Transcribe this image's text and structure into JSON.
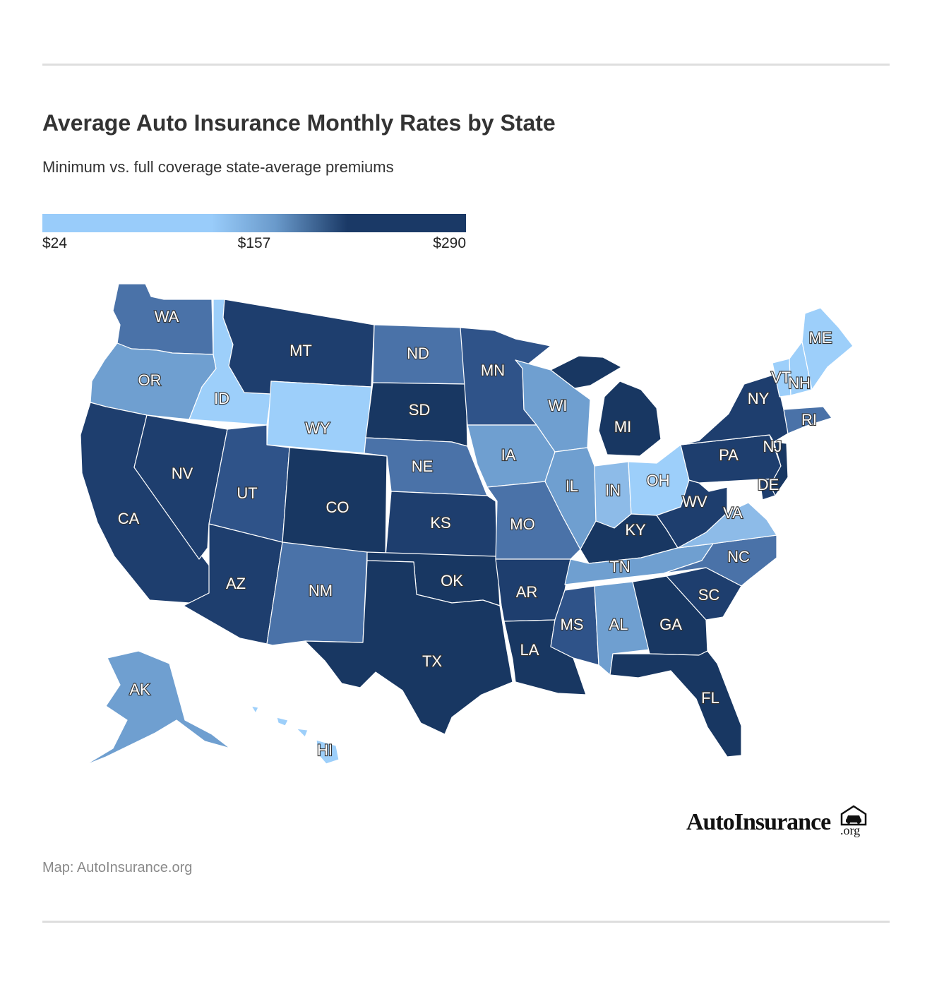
{
  "title": "Average Auto Insurance Monthly Rates by State",
  "subtitle": "Minimum vs. full coverage state-average premiums",
  "legend": {
    "min_label": "$24",
    "mid_label": "$157",
    "max_label": "$290",
    "min_value": 24,
    "mid_value": 157,
    "max_value": 290,
    "color_low": "#99ccfa",
    "color_mid": "#6a9acb",
    "color_high": "#1a3966"
  },
  "colors": {
    "lightest": "#9dcffa",
    "light": "#8dbbe8",
    "medium_light": "#6f9fd0",
    "medium": "#4a72a8",
    "medium_dark": "#2f5389",
    "dark": "#1e3e6e",
    "darkest": "#183762"
  },
  "states": [
    {
      "abbr": "WA",
      "shade": "medium"
    },
    {
      "abbr": "OR",
      "shade": "medium_light"
    },
    {
      "abbr": "CA",
      "shade": "dark"
    },
    {
      "abbr": "ID",
      "shade": "lightest"
    },
    {
      "abbr": "NV",
      "shade": "dark"
    },
    {
      "abbr": "MT",
      "shade": "dark"
    },
    {
      "abbr": "WY",
      "shade": "lightest"
    },
    {
      "abbr": "UT",
      "shade": "medium_dark"
    },
    {
      "abbr": "AZ",
      "shade": "dark"
    },
    {
      "abbr": "CO",
      "shade": "darkest"
    },
    {
      "abbr": "NM",
      "shade": "medium"
    },
    {
      "abbr": "ND",
      "shade": "medium"
    },
    {
      "abbr": "SD",
      "shade": "darkest"
    },
    {
      "abbr": "NE",
      "shade": "medium"
    },
    {
      "abbr": "KS",
      "shade": "dark"
    },
    {
      "abbr": "OK",
      "shade": "darkest"
    },
    {
      "abbr": "TX",
      "shade": "darkest"
    },
    {
      "abbr": "MN",
      "shade": "medium_dark"
    },
    {
      "abbr": "IA",
      "shade": "medium_light"
    },
    {
      "abbr": "MO",
      "shade": "medium"
    },
    {
      "abbr": "AR",
      "shade": "dark"
    },
    {
      "abbr": "LA",
      "shade": "darkest"
    },
    {
      "abbr": "WI",
      "shade": "medium_light"
    },
    {
      "abbr": "IL",
      "shade": "medium_light"
    },
    {
      "abbr": "MI",
      "shade": "darkest"
    },
    {
      "abbr": "IN",
      "shade": "light"
    },
    {
      "abbr": "OH",
      "shade": "lightest"
    },
    {
      "abbr": "KY",
      "shade": "darkest"
    },
    {
      "abbr": "TN",
      "shade": "medium_light"
    },
    {
      "abbr": "MS",
      "shade": "medium_dark"
    },
    {
      "abbr": "AL",
      "shade": "medium_light"
    },
    {
      "abbr": "GA",
      "shade": "darkest"
    },
    {
      "abbr": "FL",
      "shade": "darkest"
    },
    {
      "abbr": "SC",
      "shade": "dark"
    },
    {
      "abbr": "NC",
      "shade": "medium"
    },
    {
      "abbr": "VA",
      "shade": "light"
    },
    {
      "abbr": "WV",
      "shade": "dark"
    },
    {
      "abbr": "PA",
      "shade": "dark"
    },
    {
      "abbr": "NY",
      "shade": "dark"
    },
    {
      "abbr": "NJ",
      "shade": "darkest"
    },
    {
      "abbr": "DE",
      "shade": "dark"
    },
    {
      "abbr": "RI",
      "shade": "medium"
    },
    {
      "abbr": "VT",
      "shade": "lightest"
    },
    {
      "abbr": "NH",
      "shade": "lightest"
    },
    {
      "abbr": "ME",
      "shade": "lightest"
    },
    {
      "abbr": "AK",
      "shade": "medium_light"
    },
    {
      "abbr": "HI",
      "shade": "lightest"
    }
  ],
  "logo": {
    "name": "AutoInsurance",
    "suffix": ".org",
    "icon": "garage-car-icon"
  },
  "source": "Map: AutoInsurance.org"
}
